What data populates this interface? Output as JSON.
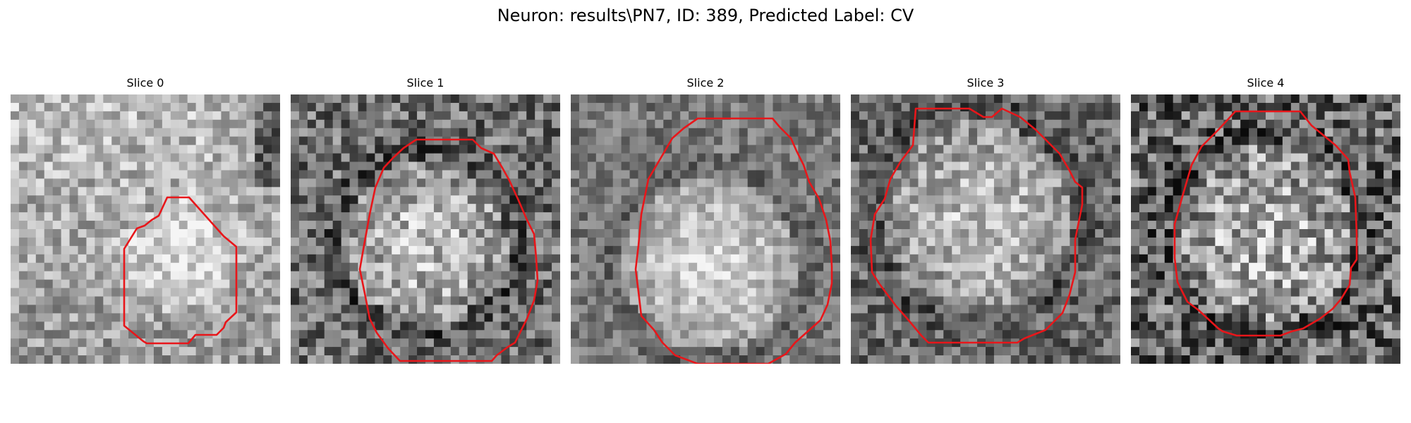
{
  "figure": {
    "title": "Neuron: results\\PN7, ID: 389, Predicted Label: CV"
  },
  "colors": {
    "contour": "#e8161a",
    "background": "#ffffff"
  },
  "panels": [
    {
      "title": "Slice 0",
      "image": "grayscale-microscopy-slice",
      "seed": 11
    },
    {
      "title": "Slice 1",
      "image": "grayscale-microscopy-slice",
      "seed": 23
    },
    {
      "title": "Slice 2",
      "image": "grayscale-microscopy-slice",
      "seed": 37
    },
    {
      "title": "Slice 3",
      "image": "grayscale-microscopy-slice",
      "seed": 51
    },
    {
      "title": "Slice 4",
      "image": "grayscale-microscopy-slice",
      "seed": 67
    }
  ]
}
